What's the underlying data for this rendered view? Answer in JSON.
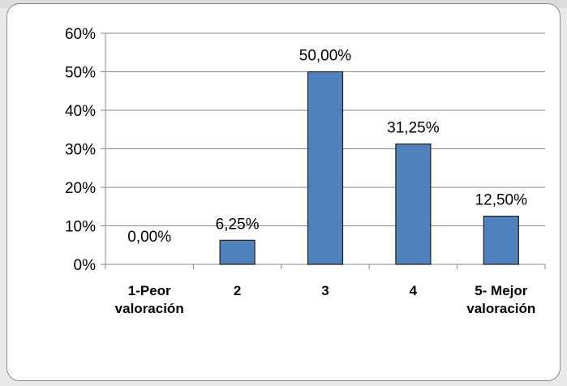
{
  "chart_data": {
    "type": "bar",
    "categories": [
      [
        "1-Peor",
        "valoración"
      ],
      [
        "2"
      ],
      [
        "3"
      ],
      [
        "4"
      ],
      [
        "5- Mejor",
        "valoración"
      ]
    ],
    "values": [
      0.0,
      6.25,
      50.0,
      31.25,
      12.5
    ],
    "data_labels": [
      "0,00%",
      "6,25%",
      "50,00%",
      "31,25%",
      "12,50%"
    ],
    "ylim": [
      0,
      60
    ],
    "yticks": [
      "0%",
      "10%",
      "20%",
      "30%",
      "40%",
      "50%",
      "60%"
    ],
    "grid": true,
    "legend": "none",
    "bar_color": "#4f81bd",
    "bar_border": "#1f1f1f",
    "grid_color": "#8a8a8a"
  }
}
